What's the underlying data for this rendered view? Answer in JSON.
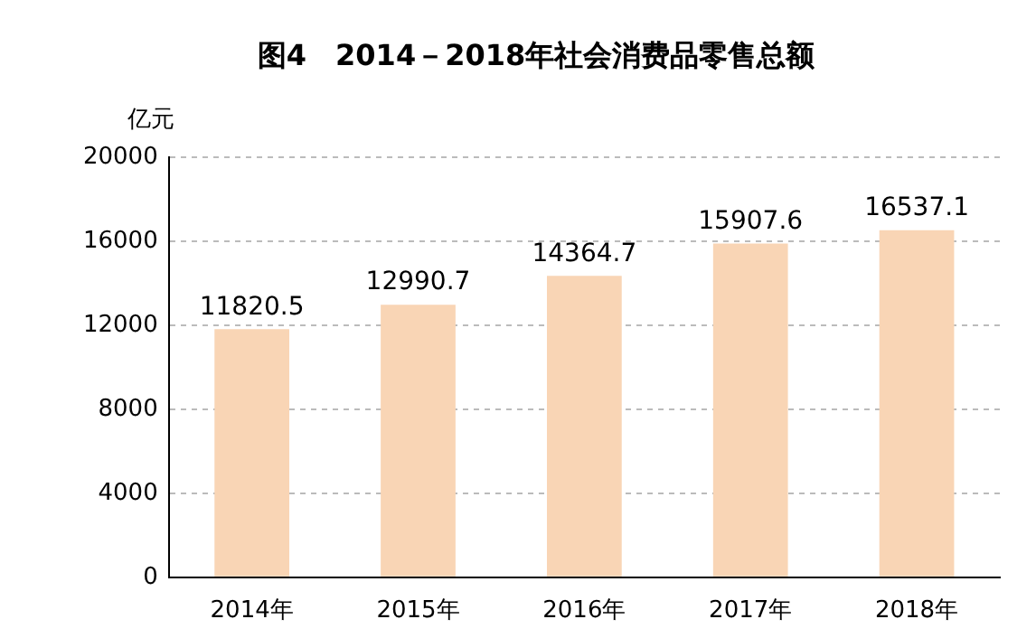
{
  "chart_data": {
    "type": "bar",
    "title": "图4　2014－2018年社会消费品零售总额",
    "ylabel": "亿元",
    "categories": [
      "2014年",
      "2015年",
      "2016年",
      "2017年",
      "2018年"
    ],
    "values": [
      11820.5,
      12990.7,
      14364.7,
      15907.6,
      16537.1
    ],
    "color": "#f9d5b5",
    "ylim": [
      0,
      20000
    ],
    "yticks": [
      0,
      4000,
      8000,
      12000,
      16000,
      20000
    ],
    "grid": "y",
    "data_labels": true
  }
}
